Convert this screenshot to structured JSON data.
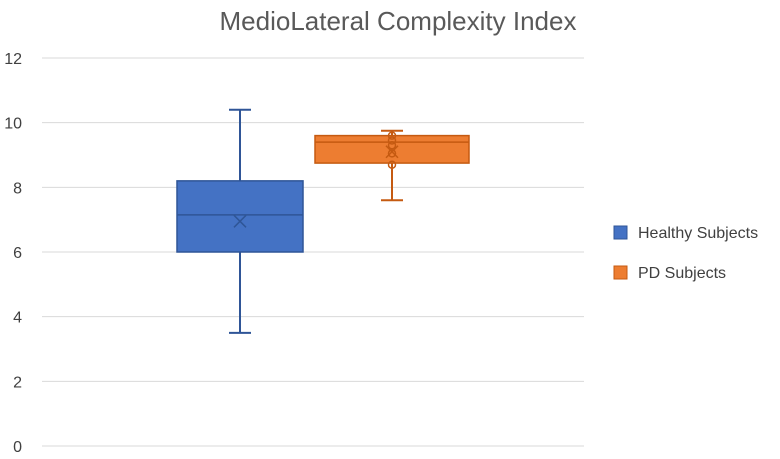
{
  "chart_data": {
    "type": "box",
    "title": "MedioLateral Complexity Index",
    "xlabel": "",
    "ylabel": "",
    "ylim": [
      0,
      12
    ],
    "yticks": [
      "0",
      "2",
      "4",
      "6",
      "8",
      "10",
      "12"
    ],
    "grid": true,
    "legend_position": "right",
    "series": [
      {
        "name": "Healthy Subjects",
        "color": "#4472C4",
        "edge_color": "#2F5597",
        "min": 3.5,
        "q1": 6.0,
        "median": 7.15,
        "mean": 6.95,
        "q3": 8.2,
        "max": 10.4,
        "points": []
      },
      {
        "name": "PD Subjects",
        "color": "#ED7D31",
        "edge_color": "#C55A11",
        "min": 7.6,
        "q1": 8.75,
        "median": 9.4,
        "mean": 9.1,
        "q3": 9.6,
        "max": 9.75,
        "points": [
          8.7,
          9.05,
          9.3,
          9.45,
          9.6
        ]
      }
    ]
  }
}
